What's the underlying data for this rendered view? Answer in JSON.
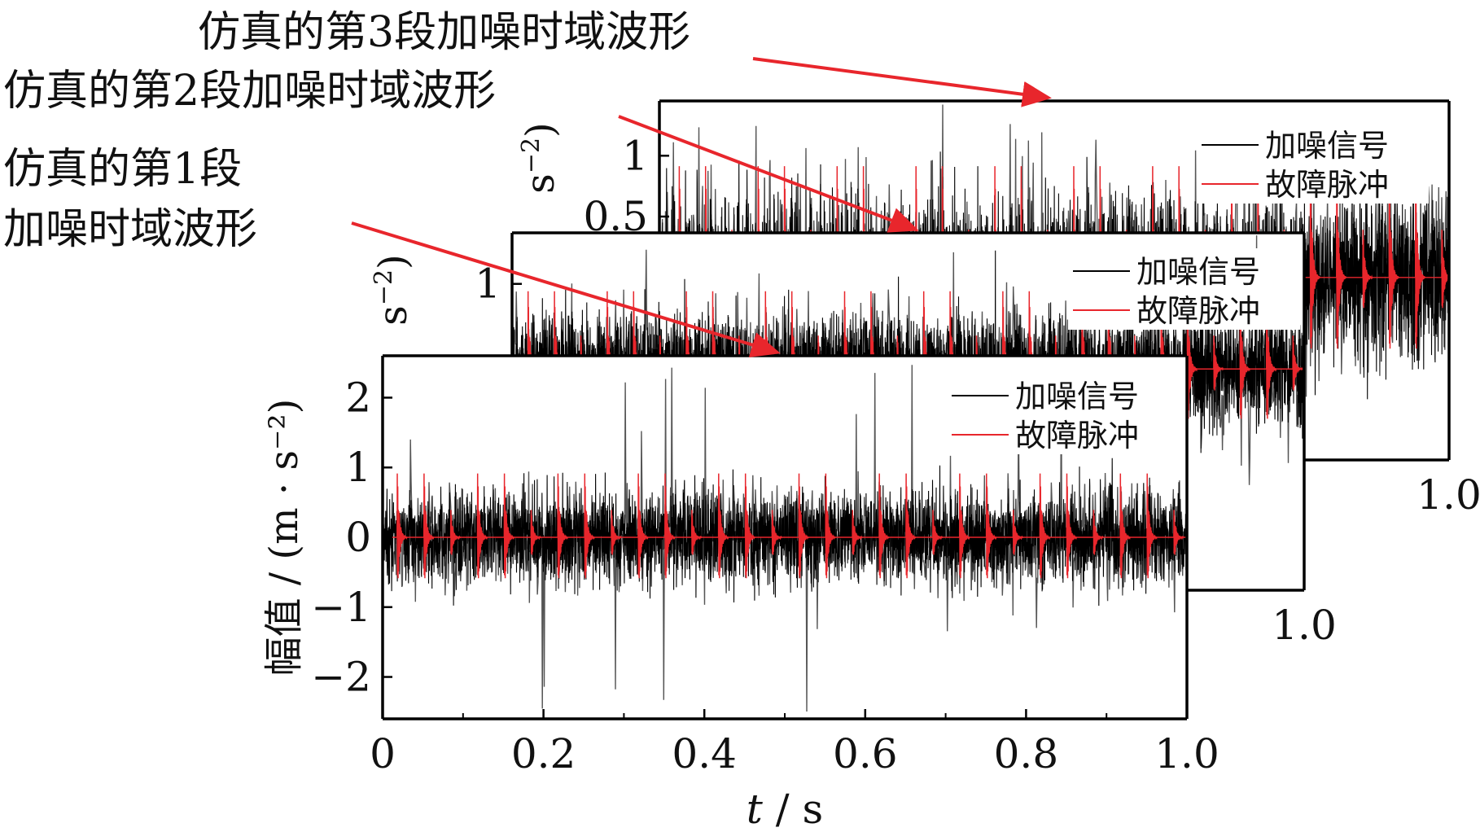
{
  "annotations": {
    "seg3": "仿真的第3段加噪时域波形",
    "seg2": "仿真的第2段加噪时域波形",
    "seg1_line1": "仿真的第1段",
    "seg1_line2": "加噪时域波形"
  },
  "chart_data": [
    {
      "id": "segment-3",
      "type": "line",
      "visible_tick_labels": {
        "x": [
          "1.0"
        ],
        "y": [
          "0.5",
          "1"
        ]
      },
      "ylabel_fragment": "s^-2",
      "xlim": [
        0,
        1.0
      ],
      "ylim": [
        -1.5,
        1.45
      ],
      "legend": {
        "placement": "top-right",
        "entries": [
          "加噪信号",
          "故障脉冲"
        ]
      },
      "series": [
        {
          "name": "加噪信号",
          "color": "#000000",
          "style": "noise",
          "amplitude": 0.85,
          "peak": 1.3
        },
        {
          "name": "故障脉冲",
          "color": "#e8262c",
          "style": "impulses",
          "impulse_period": 0.0333,
          "first_impulse": 0.025,
          "decay_length": 0.012
        }
      ]
    },
    {
      "id": "segment-2",
      "type": "line",
      "visible_tick_labels": {
        "x": [
          "1.0"
        ],
        "y": [
          "1"
        ]
      },
      "ylabel_fragment": "s^-2",
      "xlim": [
        0,
        1.0
      ],
      "ylim": [
        -2.6,
        1.6
      ],
      "legend": {
        "placement": "top-right",
        "entries": [
          "加噪信号",
          "故障脉冲"
        ]
      },
      "series": [
        {
          "name": "加噪信号",
          "color": "#000000",
          "style": "noise",
          "amplitude": 0.85,
          "peak": 1.5
        },
        {
          "name": "故障脉冲",
          "color": "#e8262c",
          "style": "impulses",
          "impulse_period": 0.0333,
          "first_impulse": 0.02,
          "decay_length": 0.012
        }
      ]
    },
    {
      "id": "segment-1",
      "type": "line",
      "title": "",
      "xlabel_italic": "t",
      "xlabel_rest": " / s",
      "ylabel": "幅值 / (m · s⁻²)",
      "xlim": [
        0,
        1.0
      ],
      "ylim": [
        -2.6,
        2.6
      ],
      "x_ticks": [
        0,
        0.2,
        0.4,
        0.6,
        0.8,
        1.0
      ],
      "x_tick_labels": [
        "0",
        "0.2",
        "0.4",
        "0.6",
        "0.8",
        "1.0"
      ],
      "y_ticks": [
        -2,
        -1,
        0,
        1,
        2
      ],
      "y_tick_labels": [
        "−2",
        "−1",
        "0",
        "1",
        "2"
      ],
      "legend": {
        "placement": "top-right",
        "entries": [
          "加噪信号",
          "故障脉冲"
        ]
      },
      "series": [
        {
          "name": "加噪信号",
          "color": "#000000",
          "style": "noise",
          "amplitude": 0.85,
          "peak": 2.5
        },
        {
          "name": "故障脉冲",
          "color": "#e8262c",
          "style": "impulses",
          "impulse_period": 0.0333,
          "first_impulse": 0.018,
          "decay_length": 0.012
        }
      ]
    }
  ],
  "colors": {
    "arrow": "#e8262c",
    "signal": "#000000",
    "impulse": "#e8262c"
  }
}
